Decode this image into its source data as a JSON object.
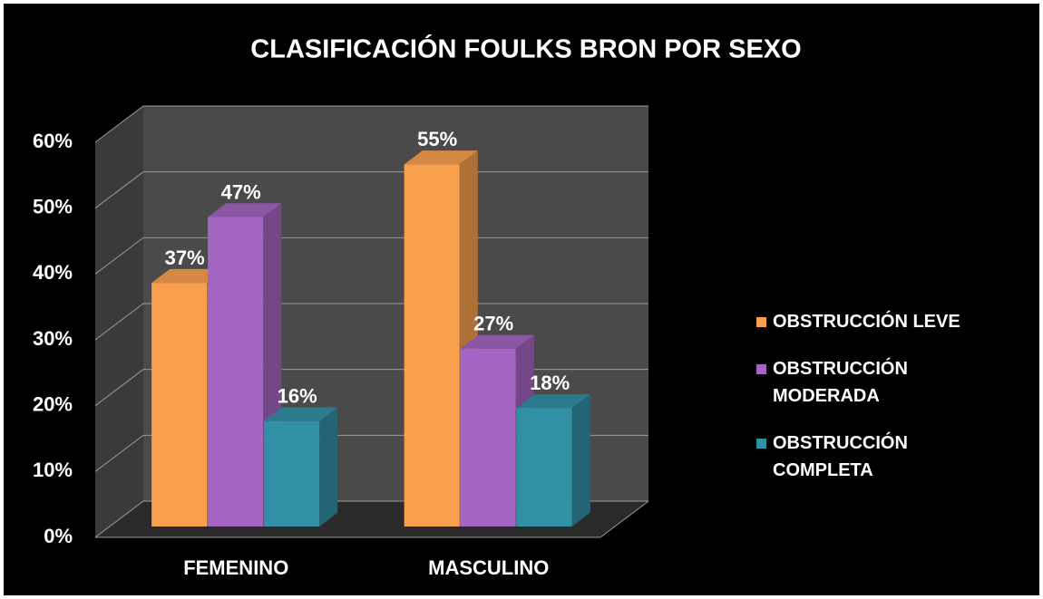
{
  "chart_data": {
    "type": "bar3d",
    "title": "CLASIFICACIÓN FOULKS BRON POR SEXO",
    "categories": [
      "FEMENINO",
      "MASCULINO"
    ],
    "series": [
      {
        "name": "OBSTRUCCIÓN LEVE",
        "color": "#f9a04f",
        "values": [
          37,
          55
        ],
        "value_labels": [
          "37%",
          "55%"
        ]
      },
      {
        "name": "OBSTRUCCIÓN MODERADA",
        "color": "#a466c2",
        "values": [
          47,
          27
        ],
        "value_labels": [
          "47%",
          "27%"
        ]
      },
      {
        "name": "OBSTRUCCIÓN COMPLETA",
        "color": "#3290a6",
        "values": [
          16,
          18
        ],
        "value_labels": [
          "16%",
          "18%"
        ]
      }
    ],
    "ylim": [
      0,
      60
    ],
    "yticks": [
      {
        "value": 0,
        "label": "0%"
      },
      {
        "value": 10,
        "label": "10%"
      },
      {
        "value": 20,
        "label": "20%"
      },
      {
        "value": 30,
        "label": "30%"
      },
      {
        "value": 40,
        "label": "40%"
      },
      {
        "value": 50,
        "label": "50%"
      },
      {
        "value": 60,
        "label": "60%"
      }
    ],
    "grid": true,
    "legend": "right"
  }
}
